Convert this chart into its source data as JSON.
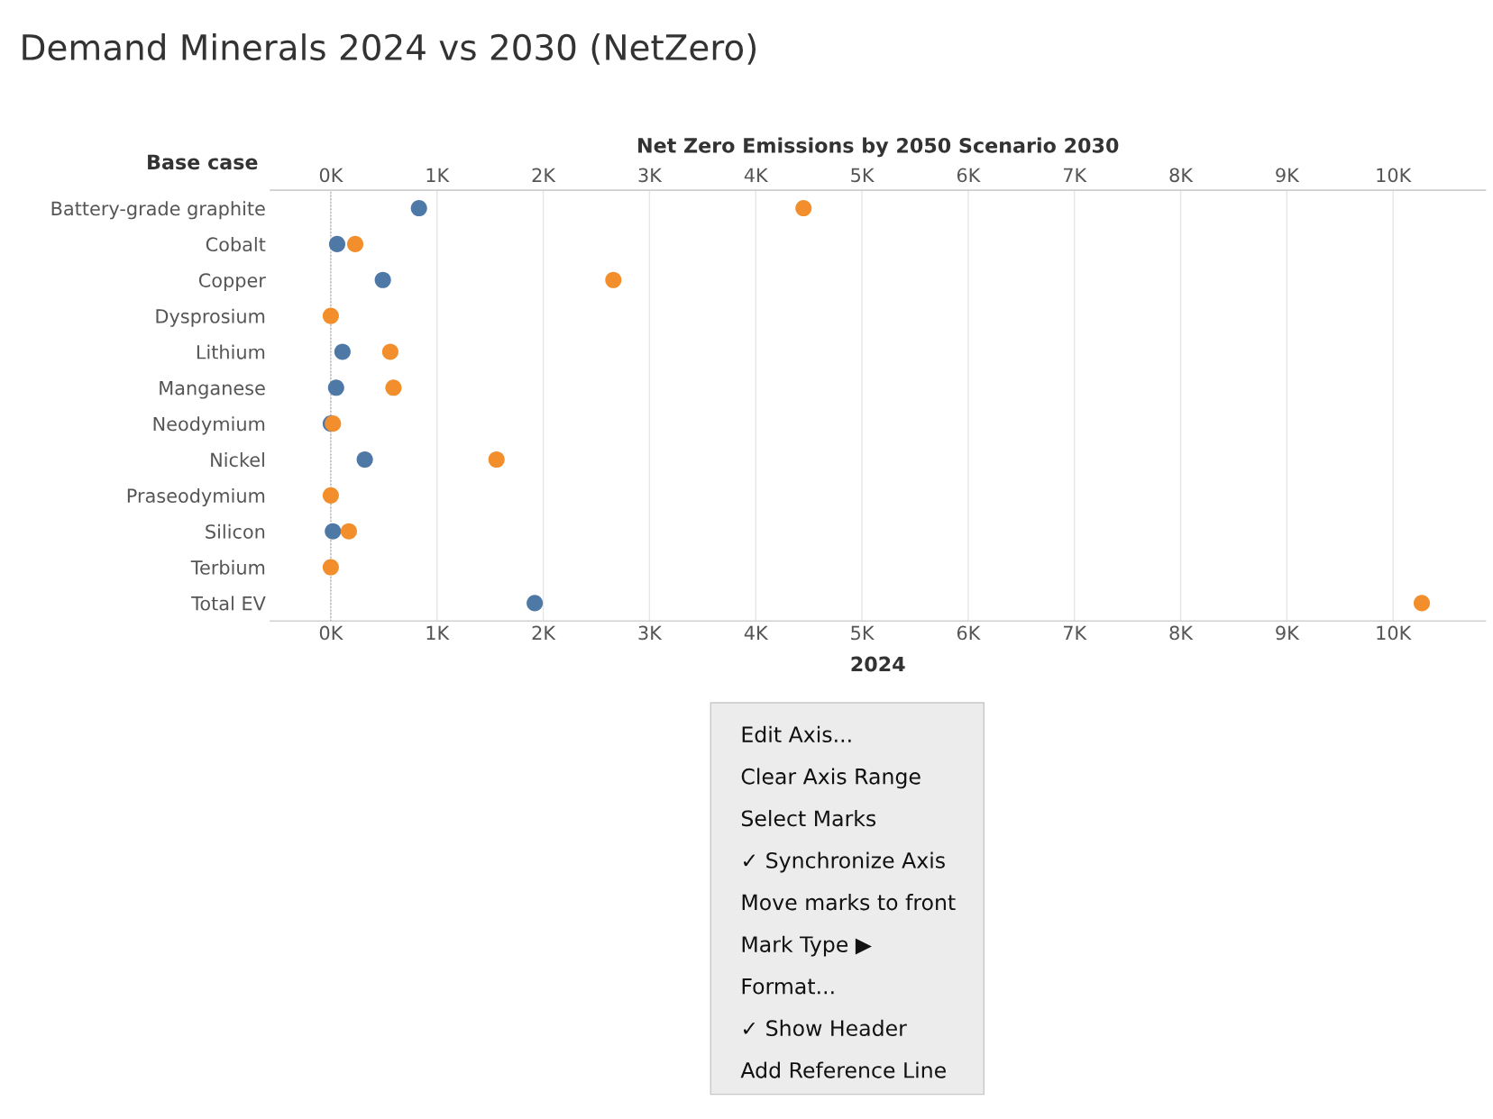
{
  "chart_data": {
    "type": "scatter",
    "title": "Demand Minerals 2024 vs 2030 (NetZero)",
    "xlabel": "2024",
    "x2label": "Net Zero Emissions by 2050 Scenario 2030",
    "ylabel": "Base case",
    "categories": [
      "Battery-grade graphite",
      "Cobalt",
      "Copper",
      "Dysprosium",
      "Lithium",
      "Manganese",
      "Neodymium",
      "Nickel",
      "Praseodymium",
      "Silicon",
      "Terbium",
      "Total EV"
    ],
    "series": [
      {
        "color": "#4e79a7",
        "values": [
          830,
          60,
          490,
          null,
          110,
          50,
          0,
          320,
          null,
          20,
          null,
          1920
        ]
      },
      {
        "color": "#f28e2b",
        "axis": "x2",
        "values": [
          4450,
          230,
          2660,
          0,
          560,
          590,
          20,
          1560,
          0,
          170,
          0,
          10270
        ]
      }
    ],
    "orientation": "horizontal",
    "marker": "circle",
    "grid": "x",
    "xlim": [
      -570,
      10870
    ],
    "xticks": [
      {
        "value": 0,
        "label": "0K"
      },
      {
        "value": 1000,
        "label": "1K"
      },
      {
        "value": 2000,
        "label": "2K"
      },
      {
        "value": 3000,
        "label": "3K"
      },
      {
        "value": 4000,
        "label": "4K"
      },
      {
        "value": 5000,
        "label": "5K"
      },
      {
        "value": 6000,
        "label": "6K"
      },
      {
        "value": 7000,
        "label": "7K"
      },
      {
        "value": 8000,
        "label": "8K"
      },
      {
        "value": 9000,
        "label": "9K"
      },
      {
        "value": 10000,
        "label": "10K"
      }
    ],
    "x2lim": [
      -570,
      10870
    ],
    "x2ticks": [
      {
        "value": 0,
        "label": "0K"
      },
      {
        "value": 1000,
        "label": "1K"
      },
      {
        "value": 2000,
        "label": "2K"
      },
      {
        "value": 3000,
        "label": "3K"
      },
      {
        "value": 4000,
        "label": "4K"
      },
      {
        "value": 5000,
        "label": "5K"
      },
      {
        "value": 6000,
        "label": "6K"
      },
      {
        "value": 7000,
        "label": "7K"
      },
      {
        "value": 8000,
        "label": "8K"
      },
      {
        "value": 9000,
        "label": "9K"
      },
      {
        "value": 10000,
        "label": "10K"
      }
    ],
    "ref_lines": [
      {
        "axis": "x",
        "value": 0,
        "label": null,
        "color": "#aaaaaa",
        "line_style": "dotted"
      }
    ],
    "annotations": [
      "Edit Axis...",
      "Clear Axis Range",
      "Select Marks",
      "✓ Synchronize Axis",
      "Move marks to front",
      "Mark Type ▶",
      "Format...",
      "✓ Show Header",
      "Add Reference Line"
    ]
  }
}
